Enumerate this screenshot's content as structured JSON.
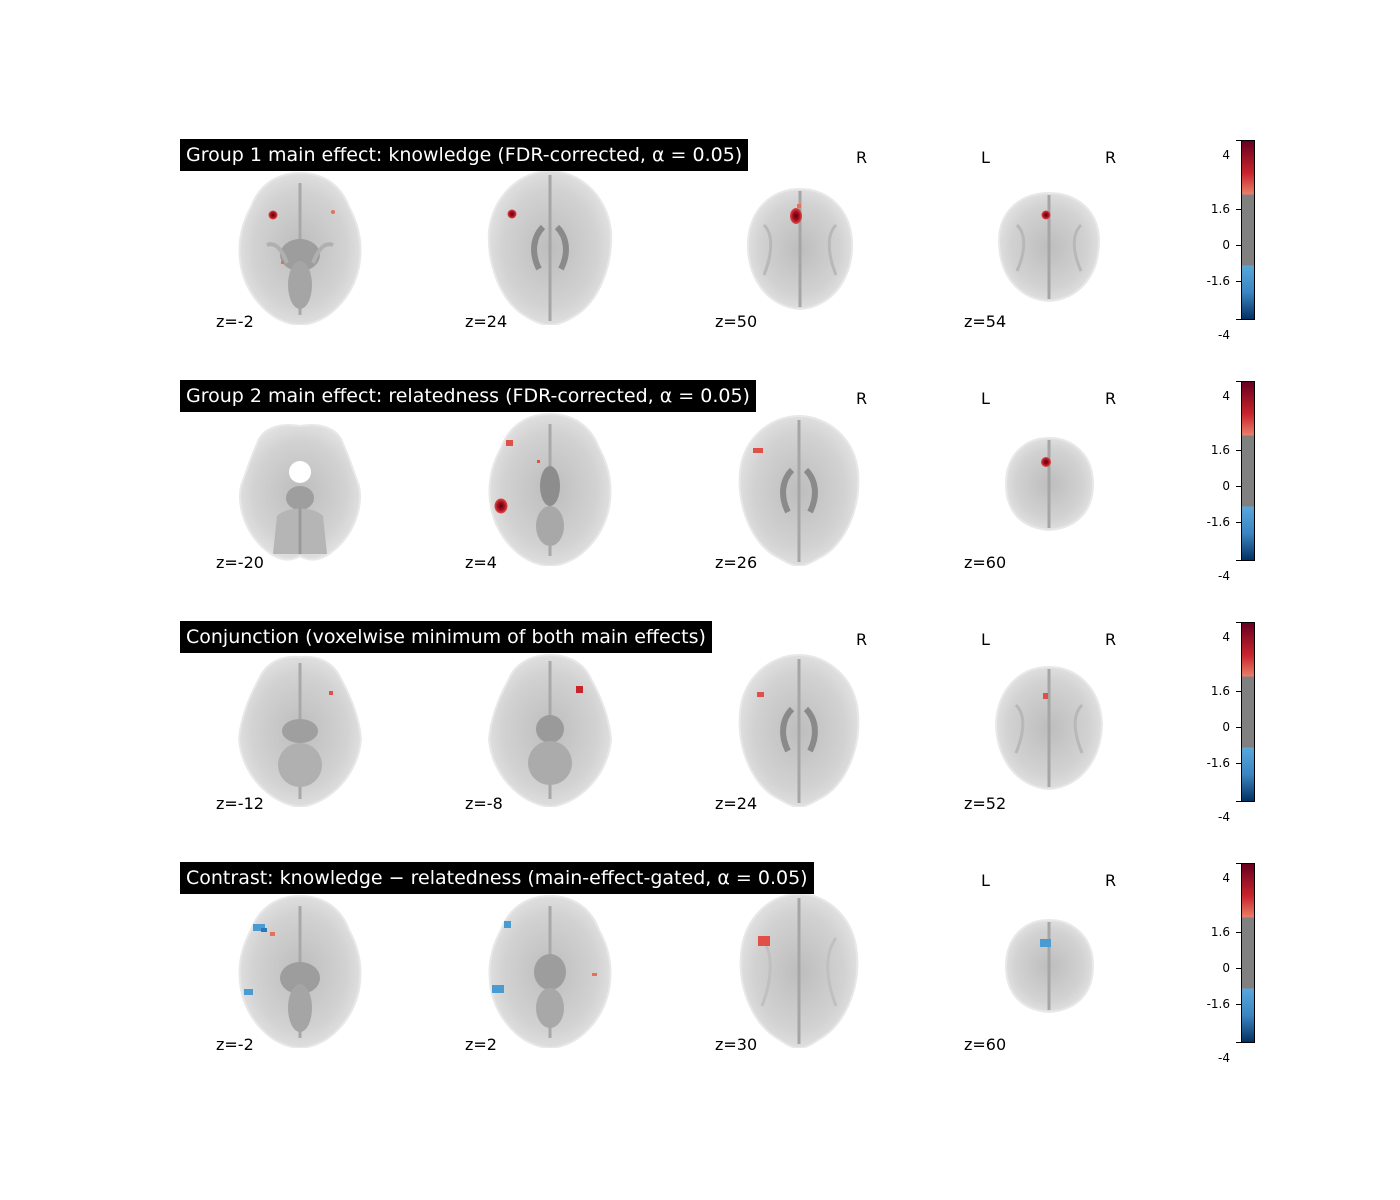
{
  "colors": {
    "hot_dark": "#7f0d1d",
    "hot": "#c8242c",
    "warm": "#e8705a",
    "cold": "#4a9bd1",
    "cold_dark": "#0a3a6e",
    "neutral": "#808080"
  },
  "colorbar": {
    "ticks": [
      "4",
      "1.6",
      "0",
      "-1.6",
      "-4"
    ]
  },
  "rows": [
    {
      "title": "Group 1 main effect: knowledge (FDR-corrected, α = 0.05)",
      "orientation": [
        "R",
        "L",
        "R"
      ],
      "slices": [
        {
          "z": "z=-2",
          "kind": "inferior"
        },
        {
          "z": "z=24",
          "kind": "mid"
        },
        {
          "z": "z=50",
          "kind": "upper"
        },
        {
          "z": "z=54",
          "kind": "top"
        }
      ]
    },
    {
      "title": "Group 2 main effect: relatedness (FDR-corrected, α = 0.05)",
      "orientation": [
        "R",
        "L",
        "R"
      ],
      "slices": [
        {
          "z": "z=-20",
          "kind": "cerebellum"
        },
        {
          "z": "z=4",
          "kind": "inferior"
        },
        {
          "z": "z=26",
          "kind": "mid"
        },
        {
          "z": "z=60",
          "kind": "top"
        }
      ]
    },
    {
      "title": "Conjunction (voxelwise minimum of both main effects)",
      "orientation": [
        "R",
        "L",
        "R"
      ],
      "slices": [
        {
          "z": "z=-12",
          "kind": "inferior"
        },
        {
          "z": "z=-8",
          "kind": "inferior"
        },
        {
          "z": "z=24",
          "kind": "mid"
        },
        {
          "z": "z=52",
          "kind": "top"
        }
      ]
    },
    {
      "title": "Contrast: knowledge − relatedness (main-effect-gated, α = 0.05)",
      "orientation": [
        "L",
        "R"
      ],
      "slices": [
        {
          "z": "z=-2",
          "kind": "inferior"
        },
        {
          "z": "z=2",
          "kind": "inferior"
        },
        {
          "z": "z=30",
          "kind": "mid"
        },
        {
          "z": "z=60",
          "kind": "top"
        }
      ]
    }
  ]
}
